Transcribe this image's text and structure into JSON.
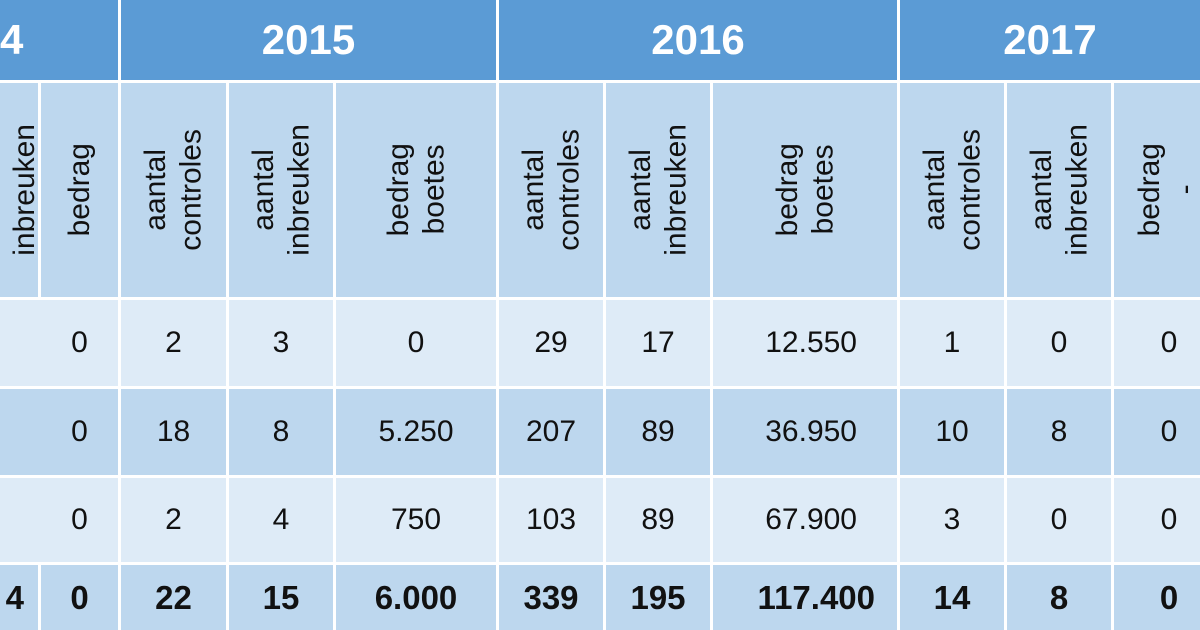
{
  "years": {
    "y2014_fragment": "4",
    "y2015": "2015",
    "y2016": "2016",
    "y2017": "2017"
  },
  "headers": {
    "c0": [
      "inbreuken"
    ],
    "c1": [
      "bedrag"
    ],
    "c2": [
      "aantal",
      "controles"
    ],
    "c3": [
      "aantal",
      "inbreuken"
    ],
    "c4": [
      "bedrag",
      "boetes"
    ],
    "c5": [
      "aantal",
      "controles"
    ],
    "c6": [
      "aantal",
      "inbreuken"
    ],
    "c7": [
      "bedrag",
      "boetes"
    ],
    "c8": [
      "aantal",
      "controles"
    ],
    "c9": [
      "aantal",
      "inbreuken"
    ],
    "c10": [
      "bedrag",
      "-"
    ]
  },
  "rows": [
    [
      "",
      "0",
      "2",
      "3",
      "0",
      "29",
      "17",
      "12.550",
      "1",
      "0",
      "0"
    ],
    [
      "",
      "0",
      "18",
      "8",
      "5.250",
      "207",
      "89",
      "36.950",
      "10",
      "8",
      "0"
    ],
    [
      "",
      "0",
      "2",
      "4",
      "750",
      "103",
      "89",
      "67.900",
      "3",
      "0",
      "0"
    ]
  ],
  "totals": [
    "4",
    "0",
    "22",
    "15",
    "6.000",
    "339",
    "195",
    "117.400",
    "14",
    "8",
    "0"
  ]
}
